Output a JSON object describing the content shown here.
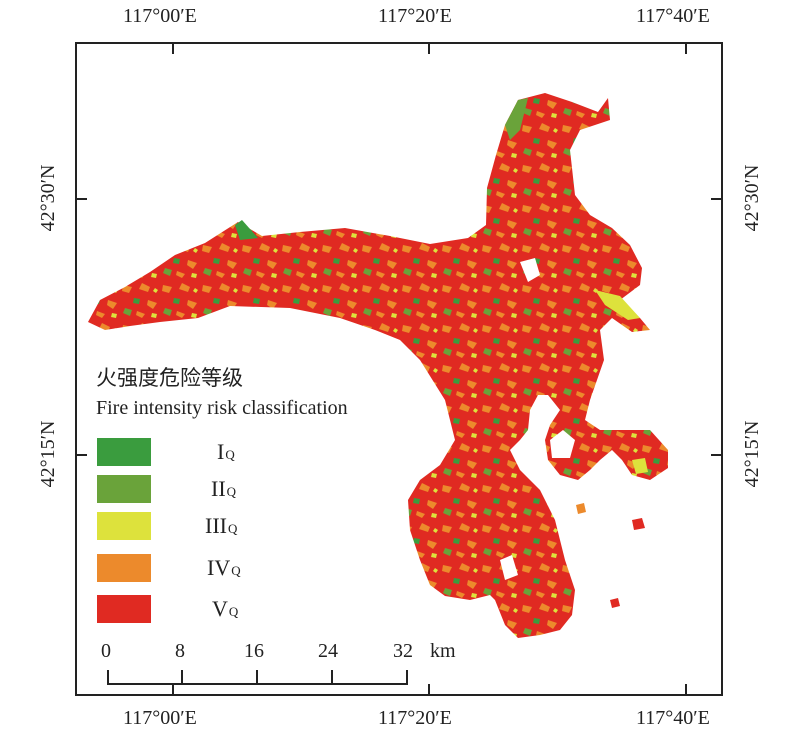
{
  "axes": {
    "top": [
      "117°00′E",
      "117°20′E",
      "117°40′E"
    ],
    "bottom": [
      "117°00′E",
      "117°20′E",
      "117°40′E"
    ],
    "left": [
      "42°30′N",
      "42°15′N"
    ],
    "right": [
      "42°30′N",
      "42°15′N"
    ]
  },
  "legend": {
    "title_cn": "火强度危险等级",
    "title_en": "Fire intensity risk classification",
    "classes": [
      {
        "base": "I",
        "sub": "Q",
        "color": "#3a9c3e"
      },
      {
        "base": "II",
        "sub": "Q",
        "color": "#6aa33a"
      },
      {
        "base": "III",
        "sub": "Q",
        "color": "#dde23c"
      },
      {
        "base": "IV",
        "sub": "Q",
        "color": "#ec8a2c"
      },
      {
        "base": "V",
        "sub": "Q",
        "color": "#e02a22"
      }
    ]
  },
  "scalebar": {
    "labels": [
      "0",
      "8",
      "16",
      "24",
      "32"
    ],
    "unit": "km"
  },
  "colors": {
    "dominant_fill": "#e02a22",
    "frame": "#222222"
  }
}
